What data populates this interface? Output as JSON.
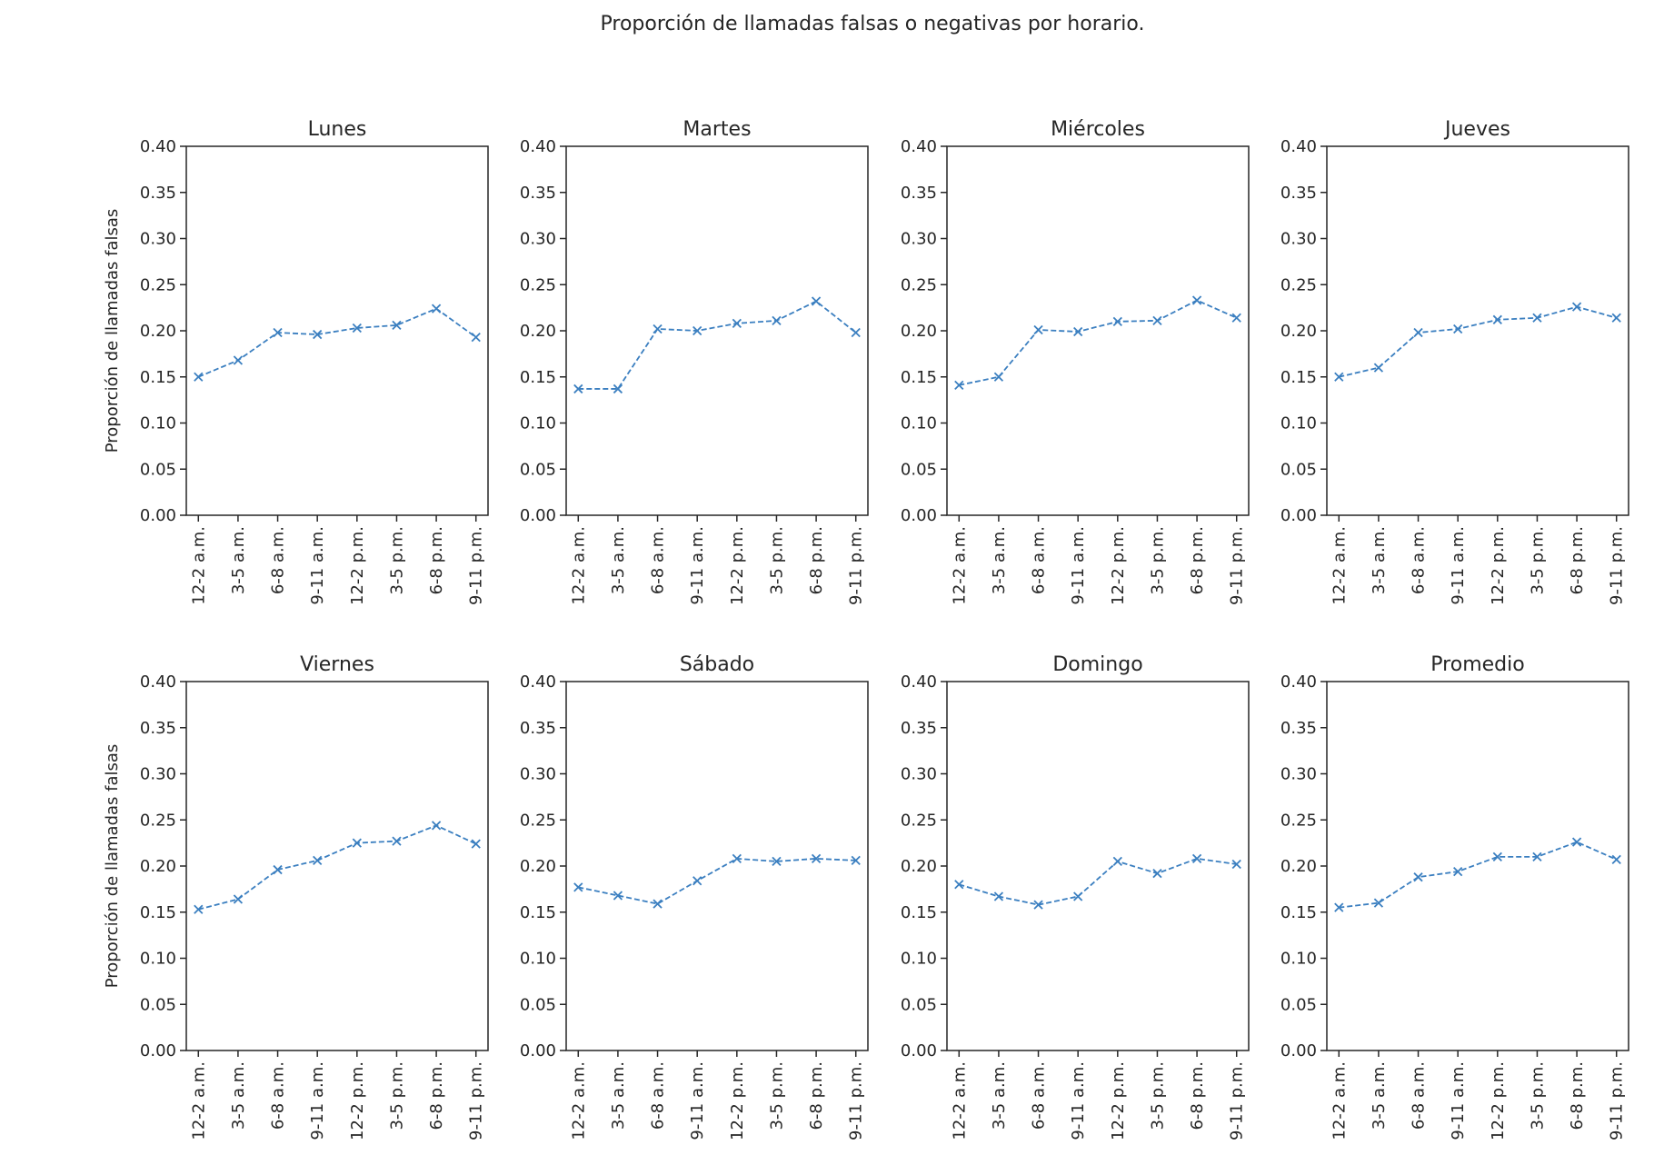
{
  "figure": {
    "title": "Proporción de llamadas falsas o negativas por horario."
  },
  "colors": {
    "series": "#3b7fc0",
    "axes": "#262626"
  },
  "chart_data": [
    {
      "type": "line",
      "title": "Lunes",
      "ylabel": "Proporción de llamadas falsas",
      "categories": [
        "12-2 a.m.",
        "3-5 a.m.",
        "6-8 a.m.",
        "9-11 a.m.",
        "12-2 p.m.",
        "3-5 p.m.",
        "6-8 p.m.",
        "9-11 p.m."
      ],
      "values": [
        0.15,
        0.168,
        0.198,
        0.196,
        0.203,
        0.206,
        0.224,
        0.193
      ],
      "marker": "x",
      "linestyle": "dashed",
      "ylim": [
        0,
        0.4
      ],
      "yticks": [
        "0.00",
        "0.05",
        "0.10",
        "0.15",
        "0.20",
        "0.25",
        "0.30",
        "0.35",
        "0.40"
      ],
      "grid": false
    },
    {
      "type": "line",
      "title": "Martes",
      "ylabel": "",
      "categories": [
        "12-2 a.m.",
        "3-5 a.m.",
        "6-8 a.m.",
        "9-11 a.m.",
        "12-2 p.m.",
        "3-5 p.m.",
        "6-8 p.m.",
        "9-11 p.m."
      ],
      "values": [
        0.137,
        0.137,
        0.202,
        0.2,
        0.208,
        0.211,
        0.232,
        0.198
      ],
      "marker": "x",
      "linestyle": "dashed",
      "ylim": [
        0,
        0.4
      ],
      "yticks": [
        "0.00",
        "0.05",
        "0.10",
        "0.15",
        "0.20",
        "0.25",
        "0.30",
        "0.35",
        "0.40"
      ],
      "grid": false
    },
    {
      "type": "line",
      "title": "Miércoles",
      "ylabel": "",
      "categories": [
        "12-2 a.m.",
        "3-5 a.m.",
        "6-8 a.m.",
        "9-11 a.m.",
        "12-2 p.m.",
        "3-5 p.m.",
        "6-8 p.m.",
        "9-11 p.m."
      ],
      "values": [
        0.141,
        0.15,
        0.201,
        0.199,
        0.21,
        0.211,
        0.233,
        0.214
      ],
      "marker": "x",
      "linestyle": "dashed",
      "ylim": [
        0,
        0.4
      ],
      "yticks": [
        "0.00",
        "0.05",
        "0.10",
        "0.15",
        "0.20",
        "0.25",
        "0.30",
        "0.35",
        "0.40"
      ],
      "grid": false
    },
    {
      "type": "line",
      "title": "Jueves",
      "ylabel": "",
      "categories": [
        "12-2 a.m.",
        "3-5 a.m.",
        "6-8 a.m.",
        "9-11 a.m.",
        "12-2 p.m.",
        "3-5 p.m.",
        "6-8 p.m.",
        "9-11 p.m."
      ],
      "values": [
        0.15,
        0.16,
        0.198,
        0.202,
        0.212,
        0.214,
        0.226,
        0.214
      ],
      "marker": "x",
      "linestyle": "dashed",
      "ylim": [
        0,
        0.4
      ],
      "yticks": [
        "0.00",
        "0.05",
        "0.10",
        "0.15",
        "0.20",
        "0.25",
        "0.30",
        "0.35",
        "0.40"
      ],
      "grid": false
    },
    {
      "type": "line",
      "title": "Viernes",
      "ylabel": "Proporción de llamadas falsas",
      "categories": [
        "12-2 a.m.",
        "3-5 a.m.",
        "6-8 a.m.",
        "9-11 a.m.",
        "12-2 p.m.",
        "3-5 p.m.",
        "6-8 p.m.",
        "9-11 p.m."
      ],
      "values": [
        0.153,
        0.164,
        0.196,
        0.206,
        0.225,
        0.227,
        0.244,
        0.224
      ],
      "marker": "x",
      "linestyle": "dashed",
      "ylim": [
        0,
        0.4
      ],
      "yticks": [
        "0.00",
        "0.05",
        "0.10",
        "0.15",
        "0.20",
        "0.25",
        "0.30",
        "0.35",
        "0.40"
      ],
      "grid": false
    },
    {
      "type": "line",
      "title": "Sábado",
      "ylabel": "",
      "categories": [
        "12-2 a.m.",
        "3-5 a.m.",
        "6-8 a.m.",
        "9-11 a.m.",
        "12-2 p.m.",
        "3-5 p.m.",
        "6-8 p.m.",
        "9-11 p.m."
      ],
      "values": [
        0.177,
        0.168,
        0.159,
        0.184,
        0.208,
        0.205,
        0.208,
        0.206
      ],
      "marker": "x",
      "linestyle": "dashed",
      "ylim": [
        0,
        0.4
      ],
      "yticks": [
        "0.00",
        "0.05",
        "0.10",
        "0.15",
        "0.20",
        "0.25",
        "0.30",
        "0.35",
        "0.40"
      ],
      "grid": false
    },
    {
      "type": "line",
      "title": "Domingo",
      "ylabel": "",
      "categories": [
        "12-2 a.m.",
        "3-5 a.m.",
        "6-8 a.m.",
        "9-11 a.m.",
        "12-2 p.m.",
        "3-5 p.m.",
        "6-8 p.m.",
        "9-11 p.m."
      ],
      "values": [
        0.18,
        0.167,
        0.158,
        0.167,
        0.205,
        0.192,
        0.208,
        0.202
      ],
      "marker": "x",
      "linestyle": "dashed",
      "ylim": [
        0,
        0.4
      ],
      "yticks": [
        "0.00",
        "0.05",
        "0.10",
        "0.15",
        "0.20",
        "0.25",
        "0.30",
        "0.35",
        "0.40"
      ],
      "grid": false
    },
    {
      "type": "line",
      "title": "Promedio",
      "ylabel": "",
      "categories": [
        "12-2 a.m.",
        "3-5 a.m.",
        "6-8 a.m.",
        "9-11 a.m.",
        "12-2 p.m.",
        "3-5 p.m.",
        "6-8 p.m.",
        "9-11 p.m."
      ],
      "values": [
        0.155,
        0.16,
        0.188,
        0.194,
        0.21,
        0.21,
        0.226,
        0.207
      ],
      "marker": "x",
      "linestyle": "dashed",
      "ylim": [
        0,
        0.4
      ],
      "yticks": [
        "0.00",
        "0.05",
        "0.10",
        "0.15",
        "0.20",
        "0.25",
        "0.30",
        "0.35",
        "0.40"
      ],
      "grid": false
    }
  ]
}
